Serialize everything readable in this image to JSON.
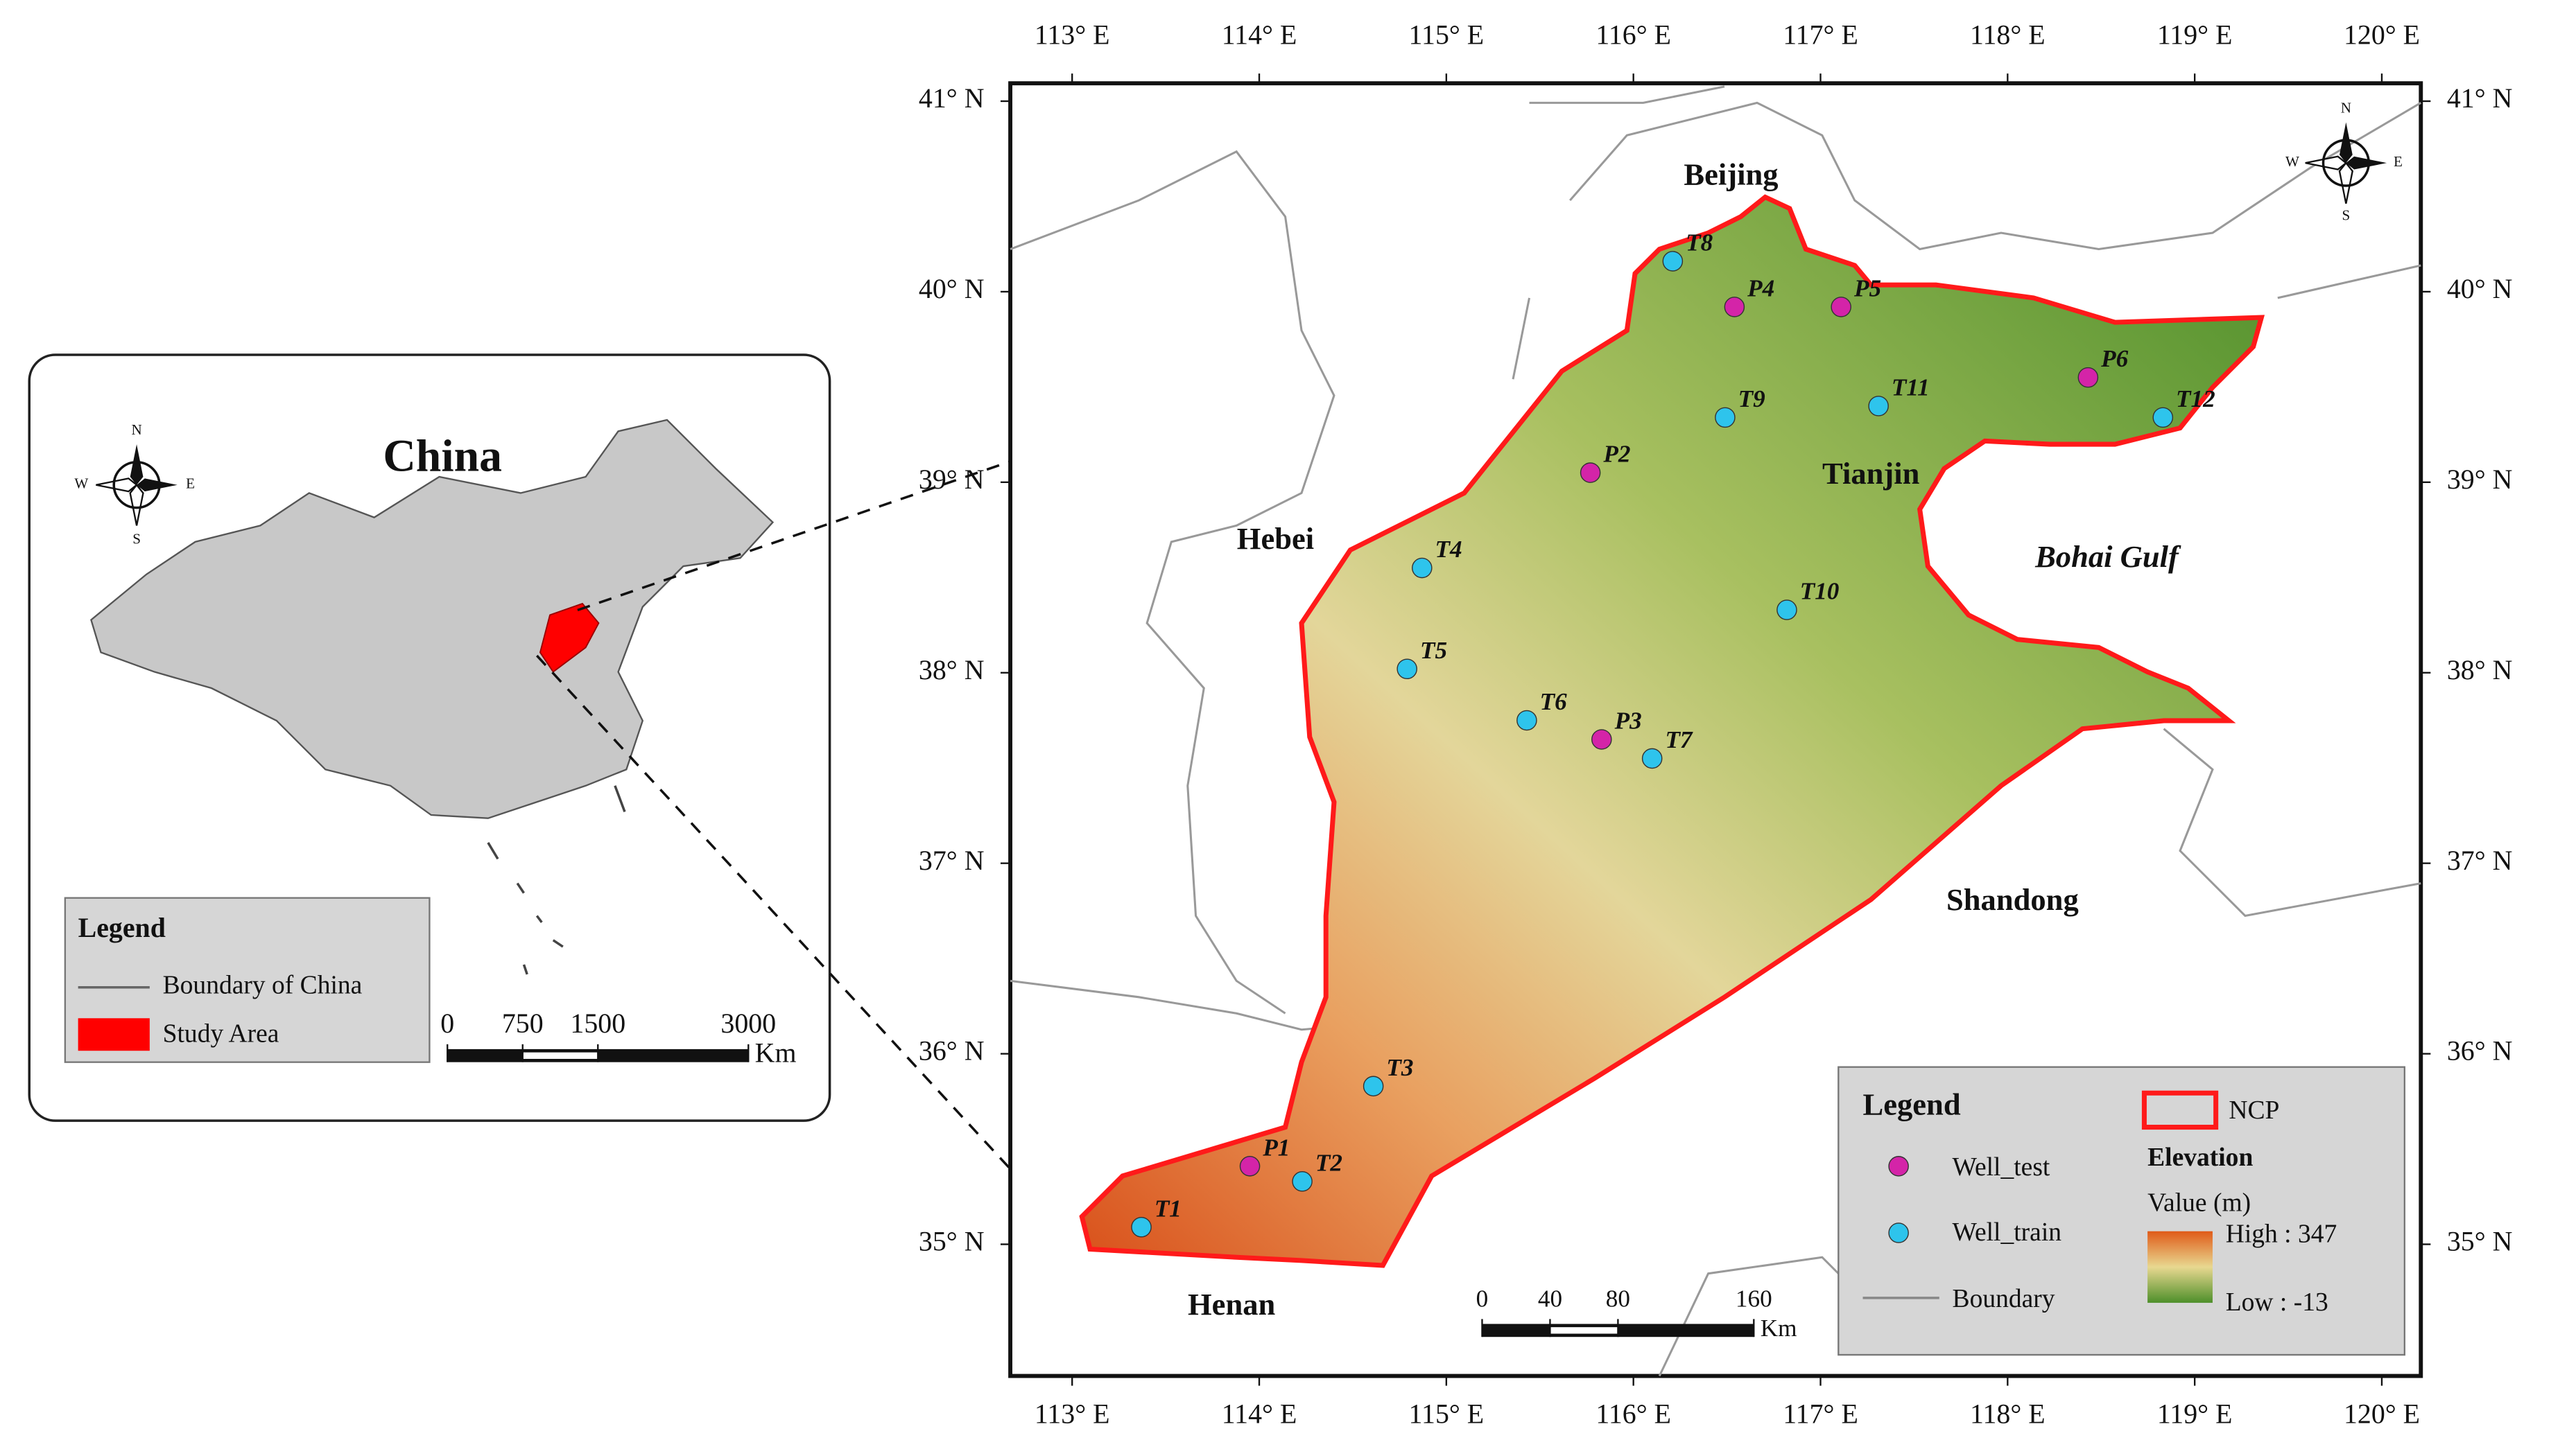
{
  "inset": {
    "title": "China",
    "compass": {
      "n": "N",
      "s": "S",
      "e": "E",
      "w": "W"
    },
    "legend": {
      "title": "Legend",
      "boundary": "Boundary of China",
      "study_area": "Study Area"
    },
    "scale_bar": {
      "ticks": [
        0,
        750,
        1500,
        3000
      ],
      "unit": "Km"
    }
  },
  "main_map": {
    "lon_ticks": [
      {
        "value": 113,
        "label": "113° E"
      },
      {
        "value": 114,
        "label": "114° E"
      },
      {
        "value": 115,
        "label": "115° E"
      },
      {
        "value": 116,
        "label": "116° E"
      },
      {
        "value": 117,
        "label": "117° E"
      },
      {
        "value": 118,
        "label": "118° E"
      },
      {
        "value": 119,
        "label": "119° E"
      },
      {
        "value": 120,
        "label": "120° E"
      }
    ],
    "lat_ticks": [
      {
        "value": 35,
        "label": "35° N"
      },
      {
        "value": 36,
        "label": "36° N"
      },
      {
        "value": 37,
        "label": "37° N"
      },
      {
        "value": 38,
        "label": "38° N"
      },
      {
        "value": 39,
        "label": "39° N"
      },
      {
        "value": 40,
        "label": "40° N"
      },
      {
        "value": 41,
        "label": "41° N"
      }
    ],
    "regions": [
      "Beijing",
      "Tianjin",
      "Hebei",
      "Bohai Gulf",
      "Shandong",
      "Henan"
    ],
    "test_wells": {
      "color": "#d424a8",
      "wells": [
        {
          "label": "P1",
          "lon": 113.95,
          "lat": 35.41
        },
        {
          "label": "P2",
          "lon": 115.77,
          "lat": 39.05
        },
        {
          "label": "P3",
          "lon": 115.83,
          "lat": 37.65
        },
        {
          "label": "P4",
          "lon": 116.54,
          "lat": 39.92
        },
        {
          "label": "P5",
          "lon": 117.11,
          "lat": 39.92
        },
        {
          "label": "P6",
          "lon": 118.43,
          "lat": 39.55
        }
      ]
    },
    "train_wells": {
      "color": "#2ec4ec",
      "wells": [
        {
          "label": "T1",
          "lon": 113.37,
          "lat": 35.09
        },
        {
          "label": "T2",
          "lon": 114.23,
          "lat": 35.33
        },
        {
          "label": "T3",
          "lon": 114.61,
          "lat": 35.83
        },
        {
          "label": "T4",
          "lon": 114.87,
          "lat": 38.55
        },
        {
          "label": "T5",
          "lon": 114.79,
          "lat": 38.02
        },
        {
          "label": "T6",
          "lon": 115.43,
          "lat": 37.75
        },
        {
          "label": "T7",
          "lon": 116.1,
          "lat": 37.55
        },
        {
          "label": "T8",
          "lon": 116.21,
          "lat": 40.16
        },
        {
          "label": "T9",
          "lon": 116.49,
          "lat": 39.34
        },
        {
          "label": "T10",
          "lon": 116.82,
          "lat": 38.33
        },
        {
          "label": "T11",
          "lon": 117.31,
          "lat": 39.4
        },
        {
          "label": "T12",
          "lon": 118.83,
          "lat": 39.34
        }
      ]
    },
    "compass": {
      "n": "N",
      "s": "S",
      "e": "E",
      "w": "W"
    },
    "legend": {
      "title": "Legend",
      "well_test": "Well_test",
      "well_train": "Well_train",
      "boundary": "Boundary",
      "ncp": "NCP",
      "elevation": "Elevation",
      "value_unit": "Value (m)",
      "high": "High : 347",
      "low": "Low : -13"
    },
    "scale_bar": {
      "ticks": [
        0,
        40,
        80,
        160
      ],
      "unit": "Km"
    }
  }
}
